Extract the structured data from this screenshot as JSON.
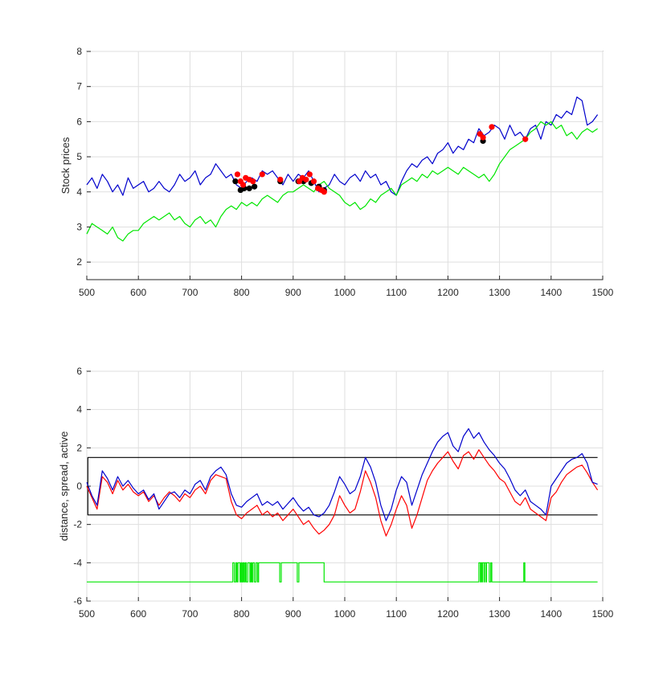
{
  "chart_data": [
    {
      "type": "line",
      "ylabel": "Stock prices",
      "xlim": [
        500,
        1500
      ],
      "ylim": [
        1.5,
        8
      ],
      "xticks": [
        500,
        600,
        700,
        800,
        900,
        1000,
        1100,
        1200,
        1300,
        1400,
        1500
      ],
      "yticks": [
        2,
        3,
        4,
        5,
        6,
        7,
        8
      ],
      "grid": true,
      "colors": {
        "blue": "#0000cc",
        "green": "#00e600",
        "red": "#ff0000",
        "black": "#000000",
        "axis": "#262626"
      },
      "series": [
        {
          "color": "#0000cc",
          "x": [
            500,
            510,
            520,
            530,
            540,
            550,
            560,
            570,
            580,
            590,
            600,
            610,
            620,
            630,
            640,
            650,
            660,
            670,
            680,
            690,
            700,
            710,
            720,
            730,
            740,
            750,
            760,
            770,
            780,
            790,
            800,
            810,
            820,
            830,
            840,
            850,
            860,
            870,
            880,
            890,
            900,
            910,
            920,
            930,
            940,
            950,
            960,
            970,
            980,
            990,
            1000,
            1010,
            1020,
            1030,
            1040,
            1050,
            1060,
            1070,
            1080,
            1090,
            1100,
            1110,
            1120,
            1130,
            1140,
            1150,
            1160,
            1170,
            1180,
            1190,
            1200,
            1210,
            1220,
            1230,
            1240,
            1250,
            1260,
            1270,
            1280,
            1290,
            1300,
            1310,
            1320,
            1330,
            1340,
            1350,
            1360,
            1370,
            1380,
            1390,
            1400,
            1410,
            1420,
            1430,
            1440,
            1450,
            1460,
            1470,
            1480,
            1490
          ],
          "y": [
            4.2,
            4.4,
            4.1,
            4.5,
            4.3,
            4.0,
            4.2,
            3.9,
            4.4,
            4.1,
            4.2,
            4.3,
            4.0,
            4.1,
            4.3,
            4.1,
            4.0,
            4.2,
            4.5,
            4.3,
            4.4,
            4.6,
            4.2,
            4.4,
            4.5,
            4.8,
            4.6,
            4.4,
            4.5,
            4.2,
            4.1,
            4.3,
            4.4,
            4.3,
            4.6,
            4.5,
            4.6,
            4.4,
            4.2,
            4.5,
            4.3,
            4.5,
            4.4,
            4.6,
            4.3,
            4.0,
            4.1,
            4.2,
            4.5,
            4.3,
            4.2,
            4.4,
            4.5,
            4.3,
            4.6,
            4.4,
            4.5,
            4.2,
            4.3,
            4.0,
            3.9,
            4.3,
            4.6,
            4.8,
            4.7,
            4.9,
            5.0,
            4.8,
            5.1,
            5.2,
            5.4,
            5.1,
            5.3,
            5.2,
            5.5,
            5.4,
            5.8,
            5.6,
            5.7,
            5.9,
            5.8,
            5.5,
            5.9,
            5.6,
            5.7,
            5.5,
            5.8,
            5.9,
            5.5,
            6.0,
            5.9,
            6.2,
            6.1,
            6.3,
            6.2,
            6.7,
            6.6,
            5.9,
            6.0,
            6.2
          ]
        },
        {
          "color": "#00e600",
          "x": [
            500,
            510,
            520,
            530,
            540,
            550,
            560,
            570,
            580,
            590,
            600,
            610,
            620,
            630,
            640,
            650,
            660,
            670,
            680,
            690,
            700,
            710,
            720,
            730,
            740,
            750,
            760,
            770,
            780,
            790,
            800,
            810,
            820,
            830,
            840,
            850,
            860,
            870,
            880,
            890,
            900,
            910,
            920,
            930,
            940,
            950,
            960,
            970,
            980,
            990,
            1000,
            1010,
            1020,
            1030,
            1040,
            1050,
            1060,
            1070,
            1080,
            1090,
            1100,
            1110,
            1120,
            1130,
            1140,
            1150,
            1160,
            1170,
            1180,
            1190,
            1200,
            1210,
            1220,
            1230,
            1240,
            1250,
            1260,
            1270,
            1280,
            1290,
            1300,
            1310,
            1320,
            1330,
            1340,
            1350,
            1360,
            1370,
            1380,
            1390,
            1400,
            1410,
            1420,
            1430,
            1440,
            1450,
            1460,
            1470,
            1480,
            1490
          ],
          "y": [
            2.8,
            3.1,
            3.0,
            2.9,
            2.8,
            3.0,
            2.7,
            2.6,
            2.8,
            2.9,
            2.9,
            3.1,
            3.2,
            3.3,
            3.2,
            3.3,
            3.4,
            3.2,
            3.3,
            3.1,
            3.0,
            3.2,
            3.3,
            3.1,
            3.2,
            3.0,
            3.3,
            3.5,
            3.6,
            3.5,
            3.7,
            3.6,
            3.7,
            3.6,
            3.8,
            3.9,
            3.8,
            3.7,
            3.9,
            4.0,
            4.0,
            4.1,
            4.2,
            4.1,
            4.0,
            4.2,
            4.3,
            4.1,
            4.0,
            3.9,
            3.7,
            3.6,
            3.7,
            3.5,
            3.6,
            3.8,
            3.7,
            3.9,
            4.0,
            4.1,
            3.9,
            4.2,
            4.3,
            4.4,
            4.3,
            4.5,
            4.4,
            4.6,
            4.5,
            4.6,
            4.7,
            4.6,
            4.5,
            4.7,
            4.6,
            4.5,
            4.4,
            4.5,
            4.3,
            4.5,
            4.8,
            5.0,
            5.2,
            5.3,
            5.4,
            5.5,
            5.7,
            5.8,
            6.0,
            5.9,
            6.0,
            5.8,
            5.9,
            5.6,
            5.7,
            5.5,
            5.7,
            5.8,
            5.7,
            5.8
          ]
        }
      ],
      "markers": [
        {
          "color": "#000000",
          "x": [
            788,
            798,
            805,
            815,
            825,
            875,
            910,
            920,
            935,
            950,
            960,
            1268
          ],
          "y": [
            4.3,
            4.05,
            4.1,
            4.1,
            4.15,
            4.3,
            4.3,
            4.3,
            4.25,
            4.15,
            4.05,
            5.45
          ]
        },
        {
          "color": "#ff0000",
          "x": [
            792,
            798,
            803,
            808,
            815,
            822,
            840,
            875,
            912,
            918,
            925,
            932,
            940,
            948,
            955,
            960,
            1262,
            1268,
            1285,
            1350
          ],
          "y": [
            4.5,
            4.3,
            4.2,
            4.4,
            4.35,
            4.3,
            4.5,
            4.35,
            4.3,
            4.4,
            4.35,
            4.5,
            4.3,
            4.1,
            4.05,
            4.0,
            5.65,
            5.55,
            5.85,
            5.5
          ]
        }
      ]
    },
    {
      "type": "line",
      "ylabel": "distance, spread, active",
      "xlim": [
        500,
        1500
      ],
      "ylim": [
        -6,
        6
      ],
      "xticks": [
        500,
        600,
        700,
        800,
        900,
        1000,
        1100,
        1200,
        1300,
        1400,
        1500
      ],
      "yticks": [
        -6,
        -4,
        -2,
        0,
        2,
        4,
        6
      ],
      "grid": true,
      "series": [
        {
          "color": "#000000",
          "x": [
            502,
            502,
            1490
          ],
          "y": [
            0,
            1.5,
            1.5
          ]
        },
        {
          "color": "#000000",
          "x": [
            502,
            502,
            1490
          ],
          "y": [
            0,
            -1.5,
            -1.5
          ]
        },
        {
          "color": "#ff0000",
          "x": [
            500,
            510,
            520,
            530,
            540,
            550,
            560,
            570,
            580,
            590,
            600,
            610,
            620,
            630,
            640,
            650,
            660,
            670,
            680,
            690,
            700,
            710,
            720,
            730,
            740,
            750,
            760,
            770,
            780,
            790,
            800,
            810,
            820,
            830,
            840,
            850,
            860,
            870,
            880,
            890,
            900,
            910,
            920,
            930,
            940,
            950,
            960,
            970,
            980,
            990,
            1000,
            1010,
            1020,
            1030,
            1040,
            1050,
            1060,
            1070,
            1080,
            1090,
            1100,
            1110,
            1120,
            1130,
            1140,
            1150,
            1160,
            1170,
            1180,
            1190,
            1200,
            1210,
            1220,
            1230,
            1240,
            1250,
            1260,
            1270,
            1280,
            1290,
            1300,
            1310,
            1320,
            1330,
            1340,
            1350,
            1360,
            1370,
            1380,
            1390,
            1400,
            1410,
            1420,
            1430,
            1440,
            1450,
            1460,
            1470,
            1480,
            1490
          ],
          "y": [
            0,
            -0.6,
            -1.2,
            0.5,
            0.2,
            -0.4,
            0.3,
            -0.2,
            0.1,
            -0.3,
            -0.5,
            -0.3,
            -0.8,
            -0.5,
            -1.0,
            -0.6,
            -0.3,
            -0.5,
            -0.8,
            -0.4,
            -0.6,
            -0.2,
            0.0,
            -0.4,
            0.3,
            0.6,
            0.5,
            0.4,
            -0.8,
            -1.5,
            -1.7,
            -1.4,
            -1.2,
            -1.0,
            -1.5,
            -1.3,
            -1.6,
            -1.4,
            -1.8,
            -1.5,
            -1.2,
            -1.6,
            -2.0,
            -1.8,
            -2.2,
            -2.5,
            -2.3,
            -2.0,
            -1.5,
            -0.5,
            -1.0,
            -1.4,
            -1.2,
            -0.3,
            0.8,
            0.2,
            -0.6,
            -1.8,
            -2.6,
            -2.0,
            -1.2,
            -0.5,
            -1.0,
            -2.2,
            -1.5,
            -0.6,
            0.3,
            0.8,
            1.2,
            1.5,
            1.8,
            1.3,
            0.9,
            1.6,
            1.8,
            1.4,
            1.9,
            1.5,
            1.1,
            0.8,
            0.4,
            0.2,
            -0.3,
            -0.8,
            -1.0,
            -0.6,
            -1.2,
            -1.4,
            -1.6,
            -1.8,
            -0.6,
            -0.3,
            0.2,
            0.6,
            0.8,
            1.0,
            1.1,
            0.7,
            0.2,
            -0.2
          ]
        },
        {
          "color": "#0000cc",
          "x": [
            500,
            510,
            520,
            530,
            540,
            550,
            560,
            570,
            580,
            590,
            600,
            610,
            620,
            630,
            640,
            650,
            660,
            670,
            680,
            690,
            700,
            710,
            720,
            730,
            740,
            750,
            760,
            770,
            780,
            790,
            800,
            810,
            820,
            830,
            840,
            850,
            860,
            870,
            880,
            890,
            900,
            910,
            920,
            930,
            940,
            950,
            960,
            970,
            980,
            990,
            1000,
            1010,
            1020,
            1030,
            1040,
            1050,
            1060,
            1070,
            1080,
            1090,
            1100,
            1110,
            1120,
            1130,
            1140,
            1150,
            1160,
            1170,
            1180,
            1190,
            1200,
            1210,
            1220,
            1230,
            1240,
            1250,
            1260,
            1270,
            1280,
            1290,
            1300,
            1310,
            1320,
            1330,
            1340,
            1350,
            1360,
            1370,
            1380,
            1390,
            1400,
            1410,
            1420,
            1430,
            1440,
            1450,
            1460,
            1470,
            1480,
            1490
          ],
          "y": [
            0.2,
            -0.5,
            -1.0,
            0.8,
            0.4,
            -0.2,
            0.5,
            0.0,
            0.3,
            -0.1,
            -0.4,
            -0.2,
            -0.7,
            -0.4,
            -1.2,
            -0.8,
            -0.4,
            -0.3,
            -0.6,
            -0.2,
            -0.4,
            0.1,
            0.3,
            -0.2,
            0.5,
            0.8,
            1.0,
            0.6,
            -0.4,
            -1.0,
            -1.1,
            -0.8,
            -0.6,
            -0.4,
            -1.0,
            -0.8,
            -1.0,
            -0.8,
            -1.2,
            -0.9,
            -0.6,
            -1.0,
            -1.3,
            -1.1,
            -1.5,
            -1.6,
            -1.4,
            -1.0,
            -0.3,
            0.5,
            0.1,
            -0.4,
            -0.2,
            0.5,
            1.5,
            1.0,
            0.2,
            -1.0,
            -1.8,
            -1.2,
            -0.2,
            0.5,
            0.2,
            -1.0,
            -0.2,
            0.6,
            1.2,
            1.8,
            2.3,
            2.6,
            2.8,
            2.1,
            1.8,
            2.6,
            3.0,
            2.5,
            2.8,
            2.3,
            1.9,
            1.6,
            1.2,
            0.9,
            0.4,
            -0.2,
            -0.5,
            -0.2,
            -0.8,
            -1.0,
            -1.2,
            -1.5,
            0.0,
            0.4,
            0.8,
            1.2,
            1.4,
            1.5,
            1.7,
            1.2,
            0.2,
            0.1
          ]
        },
        {
          "color": "#00e600",
          "step": true,
          "x": [
            500,
            783,
            786,
            789,
            791,
            793,
            797,
            799,
            801,
            803,
            805,
            807,
            809,
            812,
            816,
            818,
            820,
            822,
            825,
            828,
            831,
            833,
            874,
            877,
            908,
            911,
            911,
            915,
            922,
            930,
            940,
            950,
            955,
            960,
            1260,
            1263,
            1264,
            1266,
            1267,
            1270,
            1271,
            1274,
            1275,
            1280,
            1283,
            1285,
            1347,
            1349,
            1490
          ],
          "y": [
            -5,
            -4,
            -5,
            -4,
            -5,
            -4,
            -5,
            -4,
            -5,
            -4,
            -5,
            -4,
            -5,
            -4,
            -5,
            -4,
            -5,
            -4,
            -5,
            -4,
            -5,
            -4,
            -5,
            -4,
            -5,
            -4,
            -4,
            -4,
            -4,
            -4,
            -4,
            -4,
            -4,
            -5,
            -4,
            -5,
            -4,
            -5,
            -4,
            -5,
            -4,
            -5,
            -4,
            -5,
            -4,
            -5,
            -4,
            -5,
            -5
          ]
        }
      ]
    }
  ]
}
